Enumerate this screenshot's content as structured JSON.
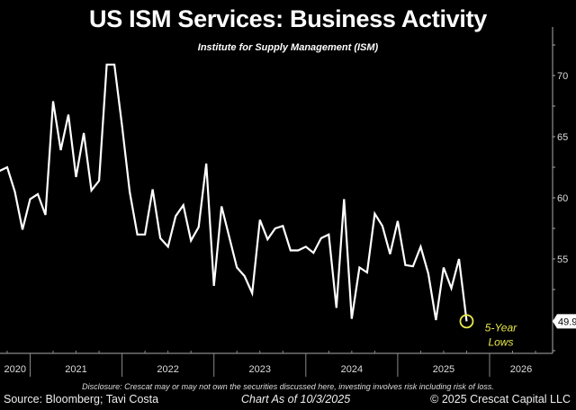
{
  "chart_data": {
    "type": "line",
    "title": "US ISM Services: Business Activity",
    "subtitle": "Institute for Supply Management (ISM)",
    "x": [
      "2020-08",
      "2020-09",
      "2020-10",
      "2020-11",
      "2020-12",
      "2021-01",
      "2021-02",
      "2021-03",
      "2021-04",
      "2021-05",
      "2021-06",
      "2021-07",
      "2021-08",
      "2021-09",
      "2021-10",
      "2021-11",
      "2021-12",
      "2022-01",
      "2022-02",
      "2022-03",
      "2022-04",
      "2022-05",
      "2022-06",
      "2022-07",
      "2022-08",
      "2022-09",
      "2022-10",
      "2022-11",
      "2022-12",
      "2023-01",
      "2023-02",
      "2023-03",
      "2023-04",
      "2023-05",
      "2023-06",
      "2023-07",
      "2023-08",
      "2023-09",
      "2023-10",
      "2023-11",
      "2023-12",
      "2024-01",
      "2024-02",
      "2024-03",
      "2024-04",
      "2024-05",
      "2024-06",
      "2024-07",
      "2024-08",
      "2024-09",
      "2024-10",
      "2024-11",
      "2024-12",
      "2025-01",
      "2025-02",
      "2025-03",
      "2025-04",
      "2025-05",
      "2025-06",
      "2025-07",
      "2025-08",
      "2025-09"
    ],
    "values": [
      62.2,
      62.5,
      60.5,
      57.4,
      59.9,
      60.3,
      58.6,
      67.9,
      63.9,
      66.8,
      61.7,
      65.3,
      60.6,
      61.4,
      70.9,
      70.9,
      65.9,
      60.5,
      57.0,
      57.0,
      60.7,
      56.7,
      56.0,
      58.5,
      59.4,
      56.5,
      57.6,
      62.8,
      52.8,
      59.3,
      56.8,
      54.3,
      53.6,
      52.2,
      58.2,
      56.6,
      57.5,
      57.7,
      55.7,
      55.7,
      56.0,
      55.5,
      56.7,
      57.0,
      51.0,
      59.9,
      50.1,
      54.3,
      53.9,
      58.7,
      57.7,
      55.4,
      58.1,
      54.5,
      54.4,
      56.0,
      53.8,
      50.0,
      54.3,
      52.6,
      55.0,
      49.9
    ],
    "xlim": [
      "2020-08",
      "2026-12"
    ],
    "ylim": [
      47.3,
      72.5
    ],
    "y_ticks": [
      55,
      60,
      65,
      70
    ],
    "x_tick_labels": [
      "2020",
      "2021",
      "2022",
      "2023",
      "2024",
      "2025",
      "2026"
    ],
    "y_axis_side": "right",
    "grid": false,
    "last_value_label": "49.9",
    "annotation": "5-Year Lows",
    "line_color": "#ffffff",
    "annotation_color": "#e8e84a",
    "background": "#000000"
  },
  "footer": {
    "disclosure": "Disclosure: Crescat may or may not own the securities discussed here, investing involves risk including risk of loss.",
    "source": "Source: Bloomberg; Tavi Costa",
    "as_of": "Chart As of 10/3/2025",
    "copyright": "© 2025 Crescat Capital LLC"
  }
}
